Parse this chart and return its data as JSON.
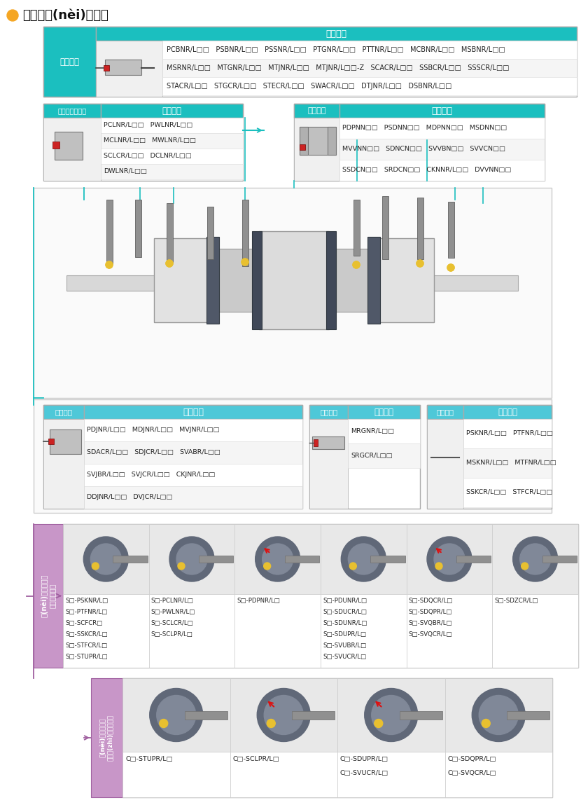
{
  "title": "外圓及內(nèi)孔車削",
  "outer_turning_header": "外圓車削",
  "outer_turning_tool_header": "刀具型號",
  "outer_turning_items": [
    "PCBNR/L□□   PSBNR/L□□   PSSNR/L□□   PTGNR/L□□   PTTNR/L□□   MCBNR/L□□   MSBNR/L□□",
    "MSRNR/L□□   MTGNR/L□□   MTJNR/L□□   MTJNR/L□□-Z   SCACR/L□□   SSBCR/L□□   SSSCR/L□□",
    "STACR/L□□   STGCR/L□□   STECR/L□□   SWACR/L□□   DTJNR/L□□   DSBNR/L□□"
  ],
  "face_turning_header": "外圓和端面車削",
  "face_turning_tool_header": "刀具型號",
  "face_turning_items": [
    "PCLNR/L□□   PWLNR/L□□",
    "MCLNR/L□□   MWLNR/L□□",
    "SCLCR/L□□   DCLNR/L□□",
    "DWLNR/L□□"
  ],
  "profile1_header": "仿形車削",
  "profile1_tool_header": "刀具型號",
  "profile1_items": [
    "PDPNN□□   PSDNN□□   MDPNN□□   MSDNN□□",
    "MVVNN□□   SDNCN□□   SVVBN□□   SVVCN□□",
    "SSDCN□□   SRDCN□□   CKNNR/L□□   DVVNN□□"
  ],
  "bottom_left_header": "仿形車削",
  "bottom_left_tool_header": "刀具型號",
  "bottom_left_items": [
    "PDJNR/L□□   MDJNR/L□□   MVJNR/L□□",
    "SDACR/L□□   SDJCR/L□□   SVABR/L□□",
    "SVJBR/L□□   SVJCR/L□□   CKJNR/L□□",
    "DDJNR/L□□   DVJCR/L□□"
  ],
  "bottom_mid_header": "仿形車削",
  "bottom_mid_tool_header": "刀具型號",
  "bottom_mid_items": [
    "MRGNR/L□□",
    "SRGCR/L□□"
  ],
  "bottom_right_header": "端面車削",
  "bottom_right_tool_header": "刀具型號",
  "bottom_right_items": [
    "PSKNR/L□□   PTFNR/L□□",
    "MSKNR/L□□   MTFNR/L□□",
    "SSKCR/L□□   STFCR/L□□"
  ],
  "steel_col1": [
    "S□-PSKNR/L□",
    "S□-PTFNR/L□",
    "S□-SCFCR□",
    "S□-SSKCR/L□",
    "S□-STFCR/L□",
    "S□-STUPR/L□"
  ],
  "steel_col2": [
    "S□-PCLNR/L□",
    "S□-PWLNR/L□",
    "S□-SCLCR/L□",
    "S□-SCLPR/L□"
  ],
  "steel_col3": [
    "S□-PDPNR/L□"
  ],
  "steel_col4": [
    "S□-PDUNR/L□",
    "S□-SDUCR/L□",
    "S□-SDUNR/L□",
    "S□-SDUPR/L□",
    "S□-SVUBR/L□",
    "S□-SVUCR/L□"
  ],
  "steel_col5": [
    "S□-SDQCR/L□",
    "S□-SDQPR/L□",
    "S□-SVQBR/L□",
    "S□-SVQCR/L□"
  ],
  "steel_col6": [
    "S□-SDZCR/L□"
  ],
  "carbide_col1": [
    "C□-STUPR/L□"
  ],
  "carbide_col2": [
    "C□-SCLPR/L□"
  ],
  "carbide_col3": [
    "C□-SDUPR/L□",
    "C□-SVUCR/L□"
  ],
  "carbide_col4": [
    "C□-SDQPR/L□",
    "C□-SVQCR/L□"
  ],
  "teal": "#1BBFBF",
  "light_teal": "#80D8D8",
  "blue": "#4EC8D8",
  "orange": "#F5A623",
  "red_accent": "#CC2222",
  "purple_bg": "#C896C8",
  "purple_border": "#A060A0",
  "gray_cell": "#F0F0F0",
  "white": "#FFFFFF",
  "dark_text": "#222222",
  "mid_gray": "#888888",
  "row_alt": "#F5F5F5",
  "border": "#AAAAAA"
}
